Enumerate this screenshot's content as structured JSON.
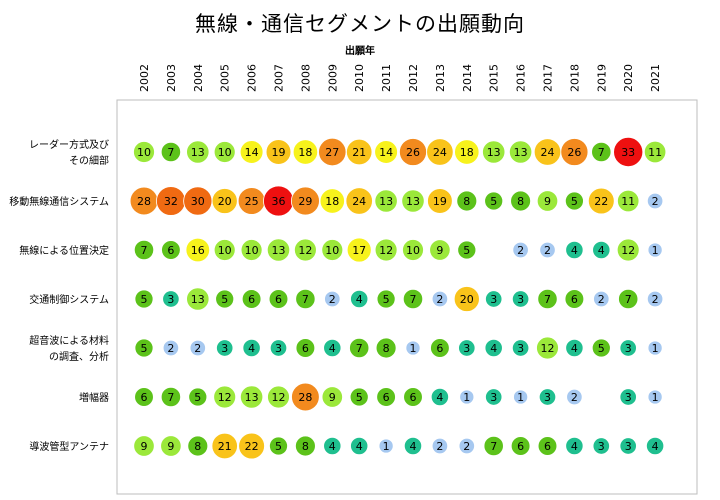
{
  "chart_data": {
    "type": "bubble-matrix",
    "title": "無線・通信セグメントの出願動向",
    "xlabel": "出願年",
    "years": [
      "2002",
      "2003",
      "2004",
      "2005",
      "2006",
      "2007",
      "2008",
      "2009",
      "2010",
      "2011",
      "2012",
      "2013",
      "2014",
      "2015",
      "2016",
      "2017",
      "2018",
      "2019",
      "2020",
      "2021"
    ],
    "rows": [
      {
        "label": [
          "レーダー方式及び",
          "その細部"
        ],
        "values": [
          10,
          7,
          13,
          10,
          14,
          19,
          18,
          27,
          21,
          14,
          26,
          24,
          18,
          13,
          13,
          24,
          26,
          7,
          33,
          11
        ]
      },
      {
        "label": [
          "移動無線通信システム"
        ],
        "values": [
          28,
          32,
          30,
          20,
          25,
          36,
          29,
          18,
          24,
          13,
          13,
          19,
          8,
          5,
          8,
          9,
          5,
          22,
          11,
          2
        ]
      },
      {
        "label": [
          "無線による位置決定"
        ],
        "values": [
          7,
          6,
          16,
          10,
          10,
          13,
          12,
          10,
          17,
          12,
          10,
          9,
          5,
          null,
          2,
          2,
          4,
          4,
          12,
          1
        ]
      },
      {
        "label": [
          "交通制御システム"
        ],
        "values": [
          5,
          3,
          13,
          5,
          6,
          6,
          7,
          2,
          4,
          5,
          7,
          2,
          20,
          3,
          3,
          7,
          6,
          2,
          7,
          2
        ]
      },
      {
        "label": [
          "超音波による材料",
          "の調査、分析"
        ],
        "values": [
          5,
          2,
          2,
          3,
          4,
          3,
          6,
          4,
          7,
          8,
          1,
          6,
          3,
          4,
          3,
          12,
          4,
          5,
          3,
          1
        ]
      },
      {
        "label": [
          "増幅器"
        ],
        "values": [
          6,
          7,
          5,
          12,
          13,
          12,
          28,
          9,
          5,
          6,
          6,
          4,
          1,
          3,
          1,
          3,
          2,
          null,
          3,
          1
        ]
      },
      {
        "label": [
          "導波管型アンテナ"
        ],
        "values": [
          9,
          9,
          8,
          21,
          22,
          5,
          8,
          4,
          4,
          1,
          4,
          2,
          2,
          7,
          6,
          6,
          4,
          3,
          3,
          4
        ]
      }
    ],
    "color_scale": [
      {
        "min": 1,
        "max": 2,
        "color": "#a6c8f0"
      },
      {
        "min": 3,
        "max": 4,
        "color": "#1fbf8f"
      },
      {
        "min": 5,
        "max": 8,
        "color": "#5cc21a"
      },
      {
        "min": 9,
        "max": 13,
        "color": "#9be83a"
      },
      {
        "min": 14,
        "max": 18,
        "color": "#f7f21c"
      },
      {
        "min": 19,
        "max": 24,
        "color": "#f9c31a"
      },
      {
        "min": 25,
        "max": 29,
        "color": "#f28a1e"
      },
      {
        "min": 30,
        "max": 32,
        "color": "#f06a12"
      },
      {
        "min": 33,
        "max": 99,
        "color": "#ee1010"
      }
    ],
    "grid": false
  }
}
